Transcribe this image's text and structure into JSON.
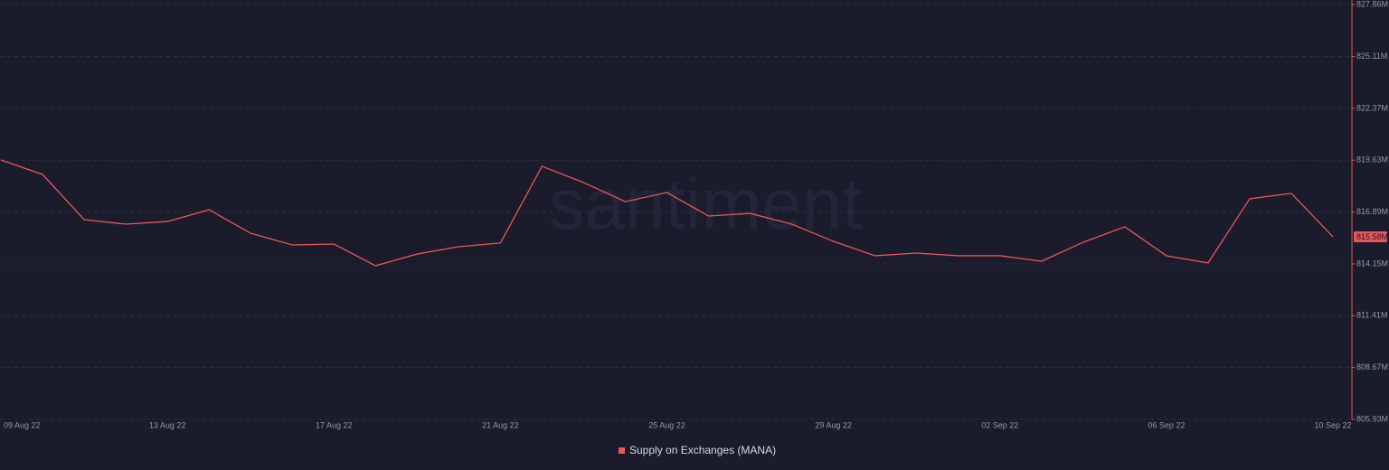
{
  "chart_data": {
    "type": "line",
    "watermark": "santiment",
    "categories": [
      "09 Aug 22",
      null,
      null,
      null,
      "13 Aug 22",
      null,
      null,
      null,
      "17 Aug 22",
      null,
      null,
      null,
      "21 Aug 22",
      null,
      null,
      null,
      "25 Aug 22",
      null,
      null,
      null,
      "29 Aug 22",
      null,
      null,
      null,
      "02 Sep 22",
      null,
      null,
      null,
      "06 Sep 22",
      null,
      null,
      null,
      "10 Sep 22"
    ],
    "series": [
      {
        "name": "Supply on Exchanges (MANA)",
        "color": "#e9555b",
        "values": [
          819.64,
          818.88,
          816.49,
          816.25,
          816.39,
          817.01,
          815.77,
          815.15,
          815.2,
          814.05,
          814.67,
          815.06,
          815.25,
          819.31,
          818.45,
          817.44,
          817.92,
          816.68,
          816.82,
          816.25,
          815.34,
          814.58,
          814.72,
          814.58,
          814.58,
          814.29,
          815.29,
          816.11,
          814.58,
          814.2,
          817.59,
          817.88,
          815.58
        ],
        "value_labels": [
          null,
          null,
          null,
          null,
          null,
          null,
          null,
          null,
          null,
          null,
          null,
          null,
          null,
          null,
          null,
          null,
          null,
          null,
          null,
          null,
          null,
          null,
          null,
          null,
          null,
          null,
          null,
          null,
          null,
          null,
          null,
          null,
          "815.58M"
        ]
      }
    ],
    "ylim": [
      805.93,
      827.86
    ],
    "yticks": [
      {
        "value": 805.93,
        "label": "805.93M"
      },
      {
        "value": 808.67,
        "label": "808.67M"
      },
      {
        "value": 811.41,
        "label": "811.41M"
      },
      {
        "value": 814.15,
        "label": "814.15M"
      },
      {
        "value": 816.89,
        "label": "816.89M"
      },
      {
        "value": 819.63,
        "label": "819.63M"
      },
      {
        "value": 822.37,
        "label": "822.37M"
      },
      {
        "value": 825.11,
        "label": "825.11M"
      },
      {
        "value": 827.86,
        "label": "827.86M"
      }
    ],
    "grid": true,
    "y_axis_side": "right"
  }
}
